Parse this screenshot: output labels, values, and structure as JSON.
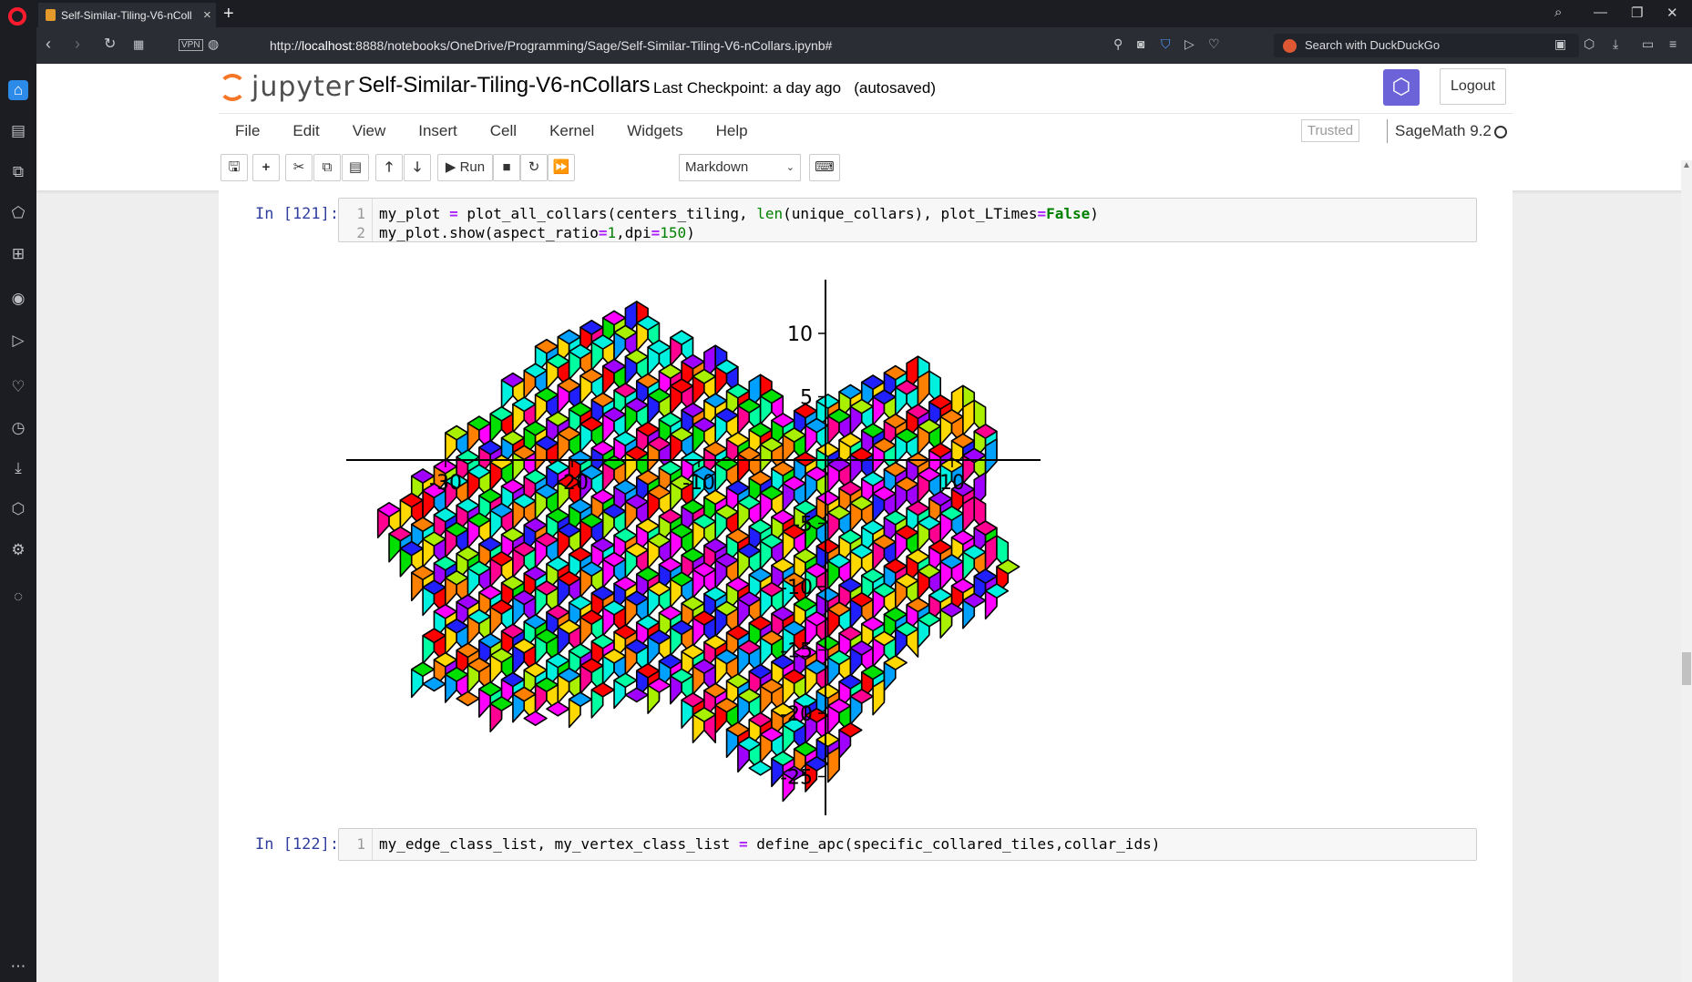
{
  "browser": {
    "tab_title": "Self-Similar-Tiling-V6-nColl",
    "url_prefix": "http://",
    "url_host": "localhost",
    "url_rest": ":8888/notebooks/OneDrive/Programming/Sage/Self-Similar-Tiling-V6-nCollars.ipynb#",
    "vpn_label": "VPN",
    "search_placeholder": "Search with DuckDuckGo"
  },
  "jupyter": {
    "logo_text": "jupyter",
    "notebook_title": "Self-Similar-Tiling-V6-nCollars",
    "checkpoint": "Last Checkpoint: a day ago",
    "autosave": "(autosaved)",
    "logout_label": "Logout",
    "menu": [
      "File",
      "Edit",
      "View",
      "Insert",
      "Cell",
      "Kernel",
      "Widgets",
      "Help"
    ],
    "trusted_label": "Trusted",
    "kernel_name": "SageMath 9.2",
    "run_label": "Run",
    "cell_type": "Markdown"
  },
  "cells": [
    {
      "prompt": "In [121]:",
      "line_numbers": [
        "1",
        "2"
      ]
    },
    {
      "prompt": "In [122]:",
      "line_numbers": [
        "1"
      ]
    }
  ],
  "code": {
    "c121_l1_a": "my_plot ",
    "c121_l1_eq": "=",
    "c121_l1_b": " plot_all_collars(centers_tiling, ",
    "c121_l1_len": "len",
    "c121_l1_c": "(unique_collars), plot_LTimes",
    "c121_l1_eq2": "=",
    "c121_l1_false": "False",
    "c121_l1_d": ")",
    "c121_l2_a": "my_plot.show(aspect_ratio",
    "c121_l2_eq": "=",
    "c121_l2_one": "1",
    "c121_l2_b": ",dpi",
    "c121_l2_eq2": "=",
    "c121_l2_150": "150",
    "c121_l2_c": ")",
    "c122_l1_a": "my_edge_class_list, my_vertex_class_list ",
    "c122_l1_eq": "=",
    "c122_l1_b": " define_apc(specific_collared_tiles,collar_ids)"
  },
  "plot": {
    "x_ticks": [
      "-30",
      "-20",
      "-10",
      "10"
    ],
    "y_ticks": [
      "10",
      "5",
      "-5",
      "-10",
      "-15",
      "-20",
      "-25"
    ],
    "palette": [
      "#ff0000",
      "#ff8000",
      "#ffd800",
      "#a8f000",
      "#00e000",
      "#00f0e0",
      "#00a0ff",
      "#2020ff",
      "#a000ff",
      "#ff00ff",
      "#ff0090",
      "#00ffa0"
    ]
  }
}
